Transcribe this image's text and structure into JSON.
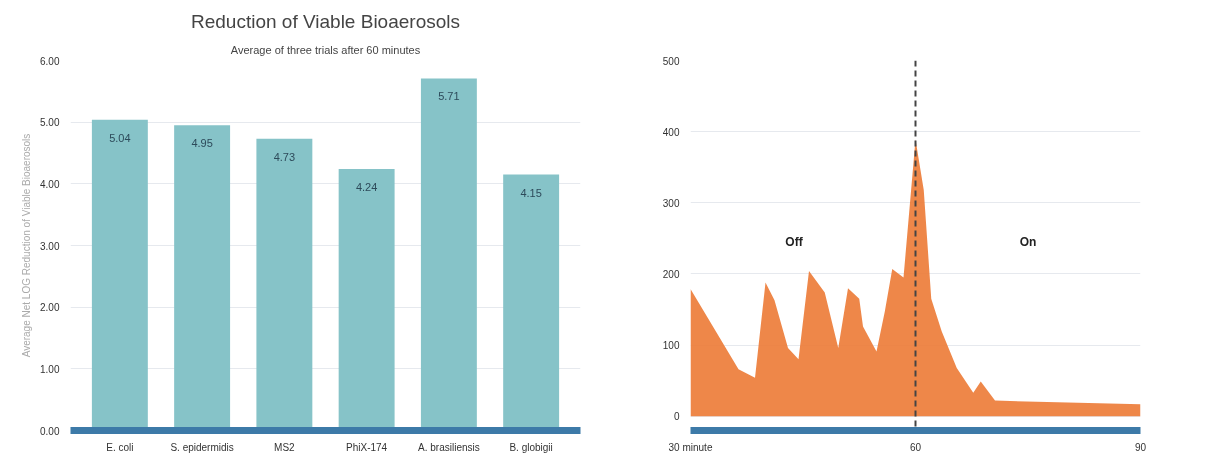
{
  "chart_data": [
    {
      "type": "bar",
      "title": "Reduction of Viable Bioaerosols",
      "subtitle": "Average of three trials after 60 minutes",
      "ylabel": "Average Net LOG Reduction of Viable Bioaerosols",
      "categories": [
        "E. coli",
        "S. epidermidis",
        "MS2",
        "PhiX-174",
        "A. brasiliensis",
        "B. globigii"
      ],
      "values": [
        5.04,
        4.95,
        4.73,
        4.24,
        5.71,
        4.15
      ],
      "color": "#86c3c8",
      "data_labels": true,
      "ylim": [
        0,
        6
      ],
      "yticks": [
        {
          "value": 0,
          "label": "0.00"
        },
        {
          "value": 1,
          "label": "1.00"
        },
        {
          "value": 2,
          "label": "2.00"
        },
        {
          "value": 3,
          "label": "3.00"
        },
        {
          "value": 4,
          "label": "4.00"
        },
        {
          "value": 5,
          "label": "5.00"
        },
        {
          "value": 6,
          "label": "6.00"
        }
      ],
      "grid": "y"
    },
    {
      "type": "area",
      "x": [
        30,
        36.4,
        38.6,
        40.0,
        41.2,
        43.0,
        44.4,
        45.8,
        47.9,
        49.7,
        51.0,
        52.5,
        53.0,
        54.8,
        55.9,
        56.9,
        58.4,
        60.0,
        61.1,
        62.1,
        63.5,
        65.5,
        67.7,
        68.7,
        70.6,
        90
      ],
      "values": [
        179,
        66,
        54,
        188,
        163,
        96,
        80,
        204,
        174,
        96,
        180,
        165,
        126,
        91,
        147,
        207,
        195,
        389,
        318,
        165,
        119,
        68,
        33,
        49,
        22,
        17
      ],
      "color": "#ec7a35",
      "xlim": [
        30,
        90
      ],
      "xticks": [
        {
          "value": 30,
          "label": "30 minute"
        },
        60,
        90
      ],
      "ylim": [
        -20,
        500
      ],
      "yticks": [
        0,
        100,
        200,
        300,
        400,
        500
      ],
      "grid": "y",
      "ref_lines": [
        {
          "axis": "x",
          "value": 60,
          "label": null,
          "color": "#444444",
          "line_style": "dashed"
        }
      ],
      "annotations": [
        "Off",
        "On"
      ]
    }
  ]
}
